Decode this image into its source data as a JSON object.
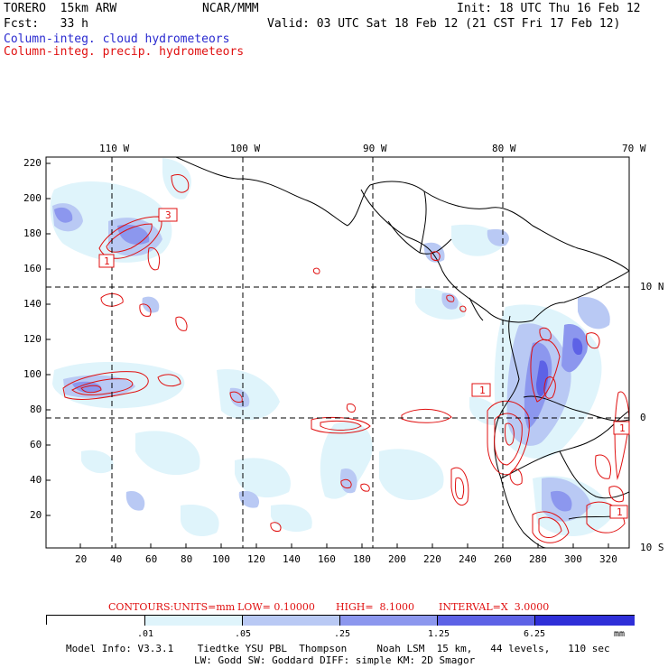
{
  "header": {
    "run_name": "TORERO  15km ARW",
    "org": "NCAR/MMM",
    "init": "Init: 18 UTC Thu 16 Feb 12",
    "fcst": "Fcst:   33 h",
    "valid": "Valid: 03 UTC Sat 18 Feb 12 (21 CST Fri 17 Feb 12)",
    "field1": "Column-integ. cloud hydrometeors",
    "field2": "Column-integ. precip. hydrometeors"
  },
  "axes": {
    "top_lon_labels": [
      "110 W",
      "100 W",
      "90 W",
      "80 W",
      "70 W"
    ],
    "right_lat_labels": [
      "10 N",
      "0",
      "10 S"
    ],
    "y_ticks": [
      "220",
      "200",
      "180",
      "160",
      "140",
      "120",
      "100",
      "80",
      "60",
      "40",
      "20"
    ],
    "x_ticks": [
      "20",
      "40",
      "60",
      "80",
      "100",
      "120",
      "140",
      "160",
      "180",
      "200",
      "220",
      "240",
      "260",
      "280",
      "300",
      "320"
    ]
  },
  "contour_labels": [
    "3",
    "1",
    "1",
    "1",
    "1"
  ],
  "contours_info": {
    "label": "CONTOURS:",
    "units": "UNITS=mm",
    "low": "LOW= 0.10000",
    "high": "HIGH=  8.1000",
    "interval": "INTERVAL=X  3.0000"
  },
  "legend": {
    "ticks": [
      ".01",
      ".05",
      ".25",
      "1.25",
      "6.25"
    ],
    "units": "mm",
    "colors": [
      "#ffffff",
      "#dff4fb",
      "#b9c9f4",
      "#8c97ee",
      "#5d62e6",
      "#2f2fd8"
    ]
  },
  "footer": {
    "line1": "Model Info: V3.3.1    Tiedtke YSU PBL  Thompson     Noah LSM  15 km,   44 levels,   110 sec",
    "line2": "LW: Godd SW: Goddard DIFF: simple KM: 2D Smagor"
  }
}
